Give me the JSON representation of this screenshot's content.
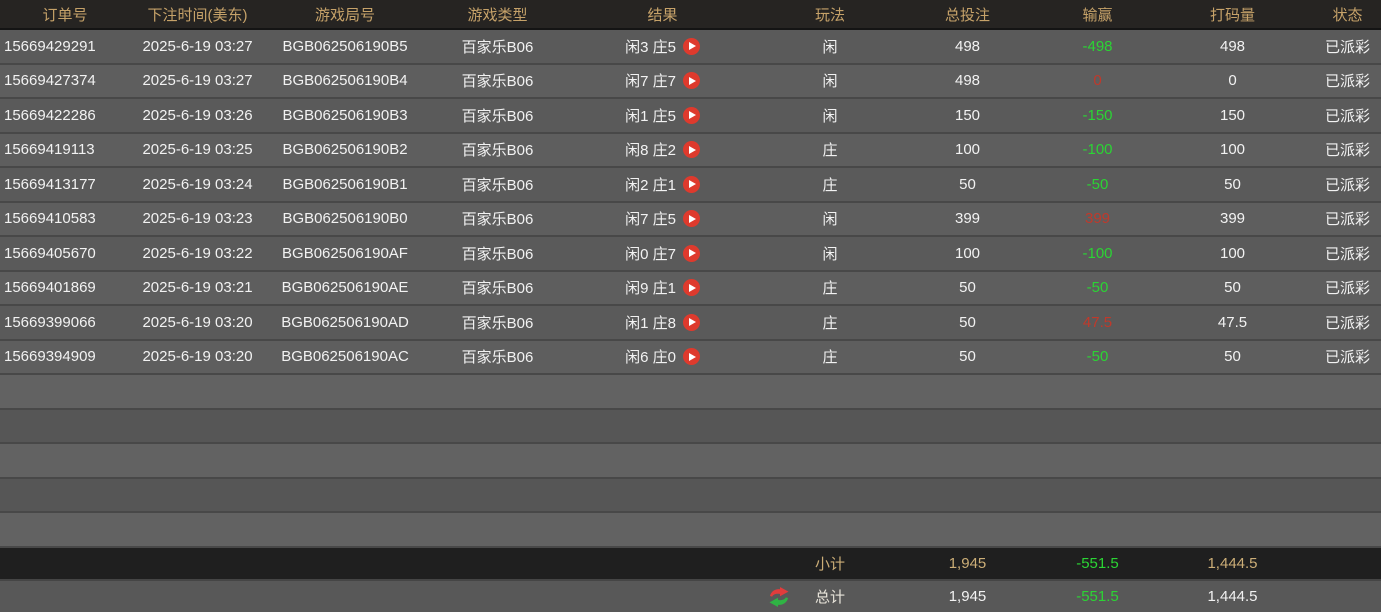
{
  "colors": {
    "header_text": "#c6a269",
    "win_green": "#2bd434",
    "loss_red": "#c0392b",
    "footer_gold": "#ccae77",
    "play_button_red": "#de3a2d"
  },
  "header": {
    "columns": [
      {
        "key": "order_id",
        "label": "订单号"
      },
      {
        "key": "bet_time",
        "label": "下注时间(美东)"
      },
      {
        "key": "round_id",
        "label": "游戏局号"
      },
      {
        "key": "game_type",
        "label": "游戏类型"
      },
      {
        "key": "result",
        "label": "结果"
      },
      {
        "key": "play",
        "label": "玩法"
      },
      {
        "key": "total_bet",
        "label": "总投注"
      },
      {
        "key": "win_loss",
        "label": "输赢"
      },
      {
        "key": "turnover",
        "label": "打码量"
      },
      {
        "key": "status",
        "label": "状态"
      }
    ]
  },
  "rows": [
    {
      "order_id": "15669429291",
      "bet_time": "2025-6-19 03:27",
      "round_id": "BGB062506190B5",
      "game_type": "百家乐B06",
      "result": "闲3 庄5",
      "play": "闲",
      "total_bet": "498",
      "win_loss": "-498",
      "win_loss_color": "green",
      "turnover": "498",
      "status": "已派彩"
    },
    {
      "order_id": "15669427374",
      "bet_time": "2025-6-19 03:27",
      "round_id": "BGB062506190B4",
      "game_type": "百家乐B06",
      "result": "闲7 庄7",
      "play": "闲",
      "total_bet": "498",
      "win_loss": "0",
      "win_loss_color": "red",
      "turnover": "0",
      "status": "已派彩"
    },
    {
      "order_id": "15669422286",
      "bet_time": "2025-6-19 03:26",
      "round_id": "BGB062506190B3",
      "game_type": "百家乐B06",
      "result": "闲1 庄5",
      "play": "闲",
      "total_bet": "150",
      "win_loss": "-150",
      "win_loss_color": "green",
      "turnover": "150",
      "status": "已派彩"
    },
    {
      "order_id": "15669419113",
      "bet_time": "2025-6-19 03:25",
      "round_id": "BGB062506190B2",
      "game_type": "百家乐B06",
      "result": "闲8 庄2",
      "play": "庄",
      "total_bet": "100",
      "win_loss": "-100",
      "win_loss_color": "green",
      "turnover": "100",
      "status": "已派彩"
    },
    {
      "order_id": "15669413177",
      "bet_time": "2025-6-19 03:24",
      "round_id": "BGB062506190B1",
      "game_type": "百家乐B06",
      "result": "闲2 庄1",
      "play": "庄",
      "total_bet": "50",
      "win_loss": "-50",
      "win_loss_color": "green",
      "turnover": "50",
      "status": "已派彩"
    },
    {
      "order_id": "15669410583",
      "bet_time": "2025-6-19 03:23",
      "round_id": "BGB062506190B0",
      "game_type": "百家乐B06",
      "result": "闲7 庄5",
      "play": "闲",
      "total_bet": "399",
      "win_loss": "399",
      "win_loss_color": "red",
      "turnover": "399",
      "status": "已派彩"
    },
    {
      "order_id": "15669405670",
      "bet_time": "2025-6-19 03:22",
      "round_id": "BGB062506190AF",
      "game_type": "百家乐B06",
      "result": "闲0 庄7",
      "play": "闲",
      "total_bet": "100",
      "win_loss": "-100",
      "win_loss_color": "green",
      "turnover": "100",
      "status": "已派彩"
    },
    {
      "order_id": "15669401869",
      "bet_time": "2025-6-19 03:21",
      "round_id": "BGB062506190AE",
      "game_type": "百家乐B06",
      "result": "闲9 庄1",
      "play": "庄",
      "total_bet": "50",
      "win_loss": "-50",
      "win_loss_color": "green",
      "turnover": "50",
      "status": "已派彩"
    },
    {
      "order_id": "15669399066",
      "bet_time": "2025-6-19 03:20",
      "round_id": "BGB062506190AD",
      "game_type": "百家乐B06",
      "result": "闲1 庄8",
      "play": "庄",
      "total_bet": "50",
      "win_loss": "47.5",
      "win_loss_color": "red",
      "turnover": "47.5",
      "status": "已派彩"
    },
    {
      "order_id": "15669394909",
      "bet_time": "2025-6-19 03:20",
      "round_id": "BGB062506190AC",
      "game_type": "百家乐B06",
      "result": "闲6 庄0",
      "play": "庄",
      "total_bet": "50",
      "win_loss": "-50",
      "win_loss_color": "green",
      "turnover": "50",
      "status": "已派彩"
    }
  ],
  "empty_row_count": 5,
  "footer": {
    "subtotal": {
      "label": "小计",
      "total_bet": "1,945",
      "win_loss": "-551.5",
      "turnover": "1,444.5"
    },
    "total": {
      "label": "总计",
      "total_bet": "1,945",
      "win_loss": "-551.5",
      "turnover": "1,444.5"
    }
  }
}
